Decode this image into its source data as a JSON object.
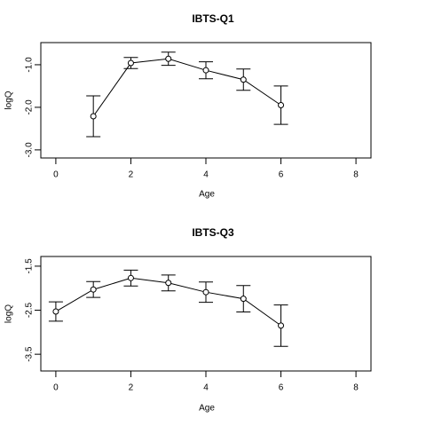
{
  "chart_data": [
    {
      "type": "line",
      "title": "IBTS-Q1",
      "xlabel": "Age",
      "ylabel": "logQ",
      "color": "#000000",
      "x": [
        1,
        2,
        3,
        4,
        5,
        6
      ],
      "values": [
        -2.21,
        -0.96,
        -0.86,
        -1.13,
        -1.35,
        -1.95
      ],
      "errors": [
        0.48,
        0.13,
        0.155,
        0.2,
        0.25,
        0.45
      ],
      "xlim": [
        -0.4,
        8.4
      ],
      "xticks": [
        0,
        2,
        4,
        6,
        8
      ],
      "ylim": [
        -3.19,
        -0.48
      ],
      "yticks": [
        {
          "value": -1,
          "label": "-1.0"
        },
        {
          "value": -2,
          "label": "-2.0"
        },
        {
          "value": -3,
          "label": "-3.0"
        }
      ]
    },
    {
      "type": "line",
      "title": "IBTS-Q3",
      "xlabel": "Age",
      "ylabel": "logQ",
      "color": "#000000",
      "x": [
        0,
        1,
        2,
        3,
        4,
        5,
        6
      ],
      "values": [
        -2.53,
        -2.03,
        -1.77,
        -1.88,
        -2.09,
        -2.24,
        -2.85
      ],
      "errors": [
        0.22,
        0.18,
        0.18,
        0.18,
        0.23,
        0.3,
        0.47
      ],
      "xlim": [
        -0.4,
        8.4
      ],
      "xticks": [
        0,
        2,
        4,
        6,
        8
      ],
      "ylim": [
        -3.88,
        -1.28
      ],
      "yticks": [
        -1.5,
        -2.5,
        -3.5
      ]
    }
  ]
}
